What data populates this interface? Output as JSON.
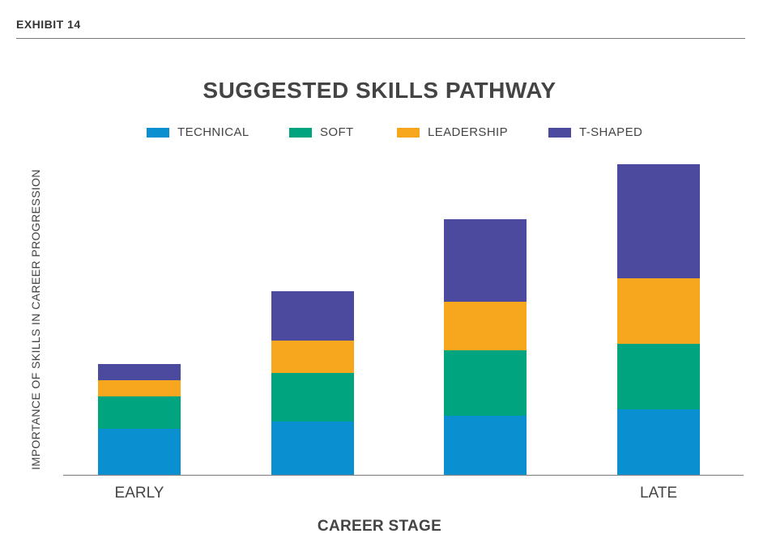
{
  "header": {
    "exhibit": "EXHIBIT 14"
  },
  "chart_data": {
    "type": "bar",
    "stacked": true,
    "title": "SUGGESTED SKILLS PATHWAY",
    "xlabel": "CAREER STAGE",
    "ylabel": "IMPORTANCE OF SKILLS IN CAREER PROGRESSION",
    "categories": [
      "EARLY",
      "",
      "",
      "LATE"
    ],
    "ylim": [
      0,
      20
    ],
    "grid": false,
    "legend_position": "top-center",
    "series": [
      {
        "name": "TECHNICAL",
        "color": "#0a8fd0",
        "values": [
          2.85,
          3.3,
          3.65,
          4.05
        ]
      },
      {
        "name": "SOFT",
        "color": "#00a47e",
        "values": [
          2.0,
          3.0,
          4.05,
          4.05
        ]
      },
      {
        "name": "LEADERSHIP",
        "color": "#f6a71d",
        "values": [
          1.0,
          2.0,
          3.0,
          4.05
        ]
      },
      {
        "name": "T-SHAPED",
        "color": "#4b4a9e",
        "values": [
          1.0,
          3.05,
          5.1,
          7.05
        ]
      }
    ]
  }
}
